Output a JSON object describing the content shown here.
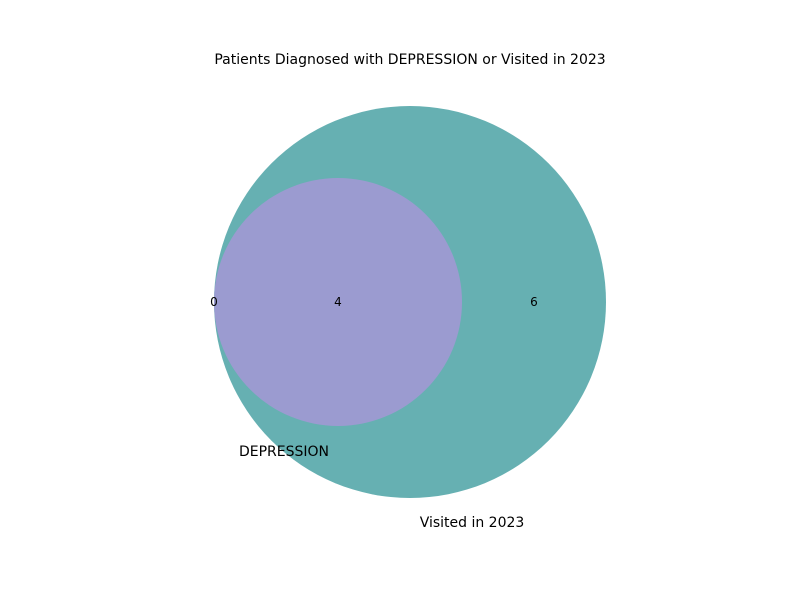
{
  "chart_data": {
    "type": "venn",
    "title": "Patients Diagnosed with DEPRESSION or Visited in 2023",
    "sets": [
      {
        "name": "DEPRESSION",
        "color": "#9b9bd0"
      },
      {
        "name": "Visited in 2023",
        "color": "#66b0b2"
      }
    ],
    "regions": {
      "depression_only": 0,
      "both": 4,
      "visited_only": 6
    }
  }
}
